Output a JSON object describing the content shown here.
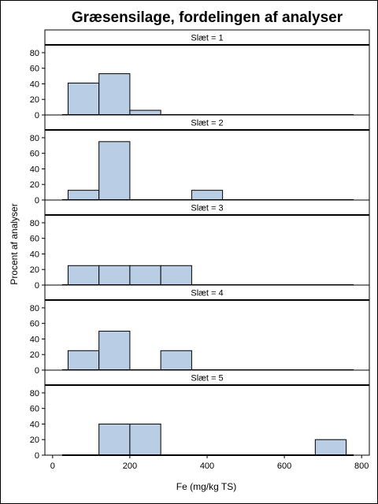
{
  "chart_data": {
    "type": "bar",
    "title": "Græsensilage, fordelingen af analyser",
    "xlabel": "Fe (mg/kg TS)",
    "ylabel": "Procent af analyser",
    "xlim": [
      -20,
      820
    ],
    "ylim": [
      0,
      90
    ],
    "xticks": [
      0,
      200,
      400,
      600,
      800
    ],
    "yticks": [
      0,
      20,
      40,
      60,
      80
    ],
    "bin_width": 80,
    "bar_color": "#b9cde5",
    "grid": false,
    "panels": [
      {
        "label": "Slæt = 1",
        "bins": [
          {
            "x0": 40,
            "y": 41
          },
          {
            "x0": 120,
            "y": 53
          },
          {
            "x0": 200,
            "y": 6
          }
        ]
      },
      {
        "label": "Slæt = 2",
        "bins": [
          {
            "x0": 40,
            "y": 12.5
          },
          {
            "x0": 120,
            "y": 75
          },
          {
            "x0": 360,
            "y": 12.5
          }
        ]
      },
      {
        "label": "Slæt = 3",
        "bins": [
          {
            "x0": 40,
            "y": 25
          },
          {
            "x0": 120,
            "y": 25
          },
          {
            "x0": 200,
            "y": 25
          },
          {
            "x0": 280,
            "y": 25
          }
        ]
      },
      {
        "label": "Slæt = 4",
        "bins": [
          {
            "x0": 40,
            "y": 25
          },
          {
            "x0": 120,
            "y": 50
          },
          {
            "x0": 280,
            "y": 25
          }
        ]
      },
      {
        "label": "Slæt = 5",
        "bins": [
          {
            "x0": 120,
            "y": 40
          },
          {
            "x0": 200,
            "y": 40
          },
          {
            "x0": 680,
            "y": 20
          }
        ]
      }
    ]
  }
}
